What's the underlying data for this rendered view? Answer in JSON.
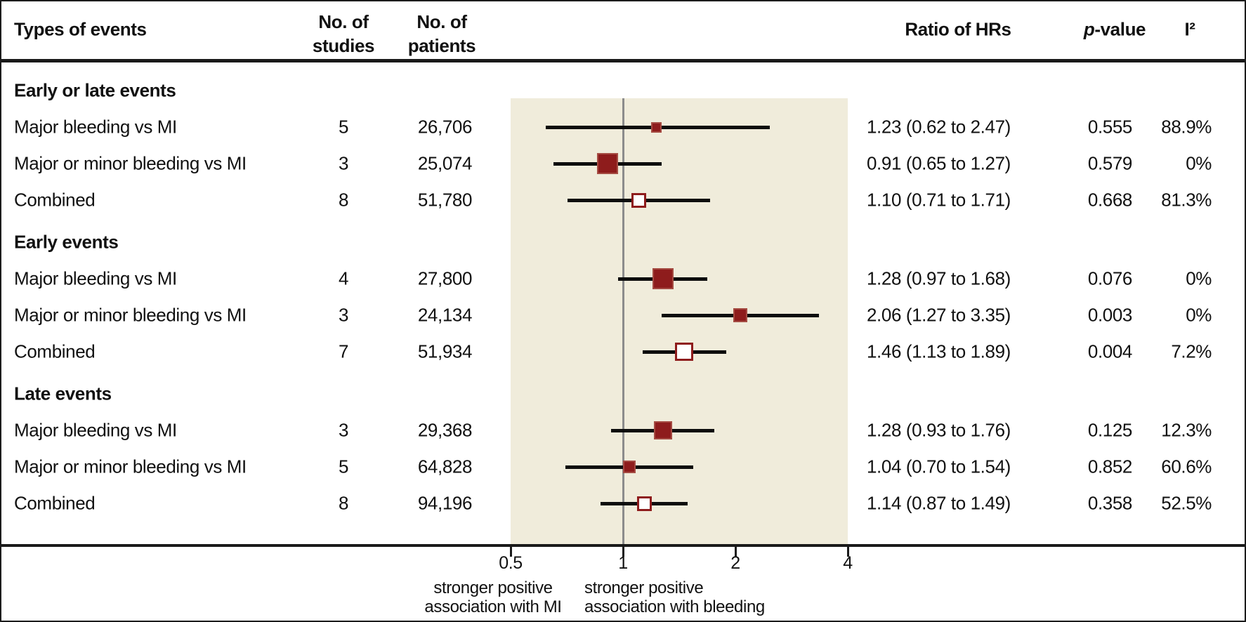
{
  "header": {
    "types_of_events": "Types of events",
    "no_of_studies_line1": "No. of",
    "no_of_studies_line2": "studies",
    "no_of_patients_line1": "No. of",
    "no_of_patients_line2": "patients",
    "ratio_of_hrs": "Ratio of HRs",
    "pvalue_italic": "p",
    "pvalue_rest": "-value",
    "i2": "I²"
  },
  "axis": {
    "ticks": [
      "0.5",
      "1",
      "2",
      "4"
    ],
    "tick_values": [
      0.5,
      1,
      2,
      4
    ],
    "left_caption_line1": "stronger positive",
    "left_caption_line2": "association with MI",
    "right_caption_line1": "stronger positive",
    "right_caption_line2": "association with bleeding"
  },
  "colors": {
    "accent_dark_red": "#8e1c1c",
    "band_beige": "#f0ecdb",
    "reference_line_gray": "#8c8c8c",
    "ci_black": "#0d0d0d"
  },
  "chart_data": {
    "type": "scatter",
    "subtype": "forest-plot",
    "xscale": "log2",
    "xlim": [
      0.5,
      4
    ],
    "xticks": [
      0.5,
      1,
      2,
      4
    ],
    "reference_line_x": 1,
    "legend_position": "none",
    "grid": false,
    "groups": [
      {
        "label": "Early or late events",
        "rows": [
          {
            "label": "Major bleeding vs MI",
            "studies": "5",
            "patients": "26,706",
            "ratio": "1.23 (0.62 to 2.47)",
            "pvalue": "0.555",
            "i2": "88.9%",
            "estimate": 1.23,
            "ci_low": 0.62,
            "ci_high": 2.47,
            "marker": "filled",
            "size": 15
          },
          {
            "label": "Major or minor bleeding vs MI",
            "studies": "3",
            "patients": "25,074",
            "ratio": "0.91 (0.65 to 1.27)",
            "pvalue": "0.579",
            "i2": "0%",
            "estimate": 0.91,
            "ci_low": 0.65,
            "ci_high": 1.27,
            "marker": "filled",
            "size": 30
          },
          {
            "label": "Combined",
            "studies": "8",
            "patients": "51,780",
            "ratio": "1.10 (0.71 to 1.71)",
            "pvalue": "0.668",
            "i2": "81.3%",
            "estimate": 1.1,
            "ci_low": 0.71,
            "ci_high": 1.71,
            "marker": "open",
            "size": 21
          }
        ]
      },
      {
        "label": "Early events",
        "rows": [
          {
            "label": "Major bleeding vs MI",
            "studies": "4",
            "patients": "27,800",
            "ratio": "1.28 (0.97 to 1.68)",
            "pvalue": "0.076",
            "i2": "0%",
            "estimate": 1.28,
            "ci_low": 0.97,
            "ci_high": 1.68,
            "marker": "filled",
            "size": 30
          },
          {
            "label": "Major or minor bleeding vs MI",
            "studies": "3",
            "patients": "24,134",
            "ratio": "2.06 (1.27 to 3.35)",
            "pvalue": "0.003",
            "i2": "0%",
            "estimate": 2.06,
            "ci_low": 1.27,
            "ci_high": 3.35,
            "marker": "filled",
            "size": 20
          },
          {
            "label": "Combined",
            "studies": "7",
            "patients": "51,934",
            "ratio": "1.46 (1.13 to 1.89)",
            "pvalue": "0.004",
            "i2": "7.2%",
            "estimate": 1.46,
            "ci_low": 1.13,
            "ci_high": 1.89,
            "marker": "open",
            "size": 26
          }
        ]
      },
      {
        "label": "Late events",
        "rows": [
          {
            "label": "Major bleeding vs MI",
            "studies": "3",
            "patients": "29,368",
            "ratio": "1.28 (0.93 to 1.76)",
            "pvalue": "0.125",
            "i2": "12.3%",
            "estimate": 1.28,
            "ci_low": 0.93,
            "ci_high": 1.76,
            "marker": "filled",
            "size": 26
          },
          {
            "label": "Major or minor bleeding vs MI",
            "studies": "5",
            "patients": "64,828",
            "ratio": "1.04 (0.70 to 1.54)",
            "pvalue": "0.852",
            "i2": "60.6%",
            "estimate": 1.04,
            "ci_low": 0.7,
            "ci_high": 1.54,
            "marker": "filled",
            "size": 18
          },
          {
            "label": "Combined",
            "studies": "8",
            "patients": "94,196",
            "ratio": "1.14 (0.87 to 1.49)",
            "pvalue": "0.358",
            "i2": "52.5%",
            "estimate": 1.14,
            "ci_low": 0.87,
            "ci_high": 1.49,
            "marker": "open",
            "size": 21
          }
        ]
      }
    ]
  }
}
